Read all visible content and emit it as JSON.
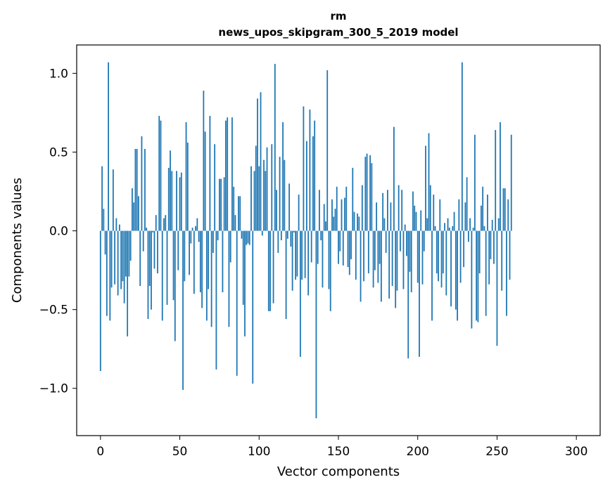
{
  "chart_data": {
    "type": "bar",
    "title": "rm",
    "subtitle": "news_upos_skipgram_300_5_2019 model",
    "xlabel": "Vector components",
    "ylabel": "Components values",
    "xlim": [
      -15,
      315
    ],
    "ylim": [
      -1.3,
      1.18
    ],
    "xticks": [
      0,
      50,
      100,
      150,
      200,
      250,
      300
    ],
    "yticks": [
      -1.0,
      -0.5,
      0.0,
      0.5,
      1.0
    ],
    "xtick_labels": [
      "0",
      "50",
      "100",
      "150",
      "200",
      "250",
      "300"
    ],
    "ytick_labels": [
      "−1.0",
      "−0.5",
      "0.0",
      "0.5",
      "1.0"
    ],
    "bar_color": "#1f77b4",
    "grid": false,
    "legend": "none",
    "values": [
      -0.89,
      0.41,
      0.14,
      -0.15,
      -0.54,
      1.07,
      -0.57,
      -0.36,
      0.39,
      -0.34,
      0.08,
      -0.41,
      0.04,
      -0.37,
      -0.32,
      -0.46,
      -0.29,
      -0.67,
      -0.29,
      -0.19,
      0.27,
      0.18,
      0.52,
      0.52,
      0.22,
      -0.35,
      0.6,
      -0.13,
      0.52,
      0.02,
      -0.56,
      -0.35,
      -0.5,
      -0.01,
      -0.24,
      0.1,
      -0.27,
      0.73,
      0.7,
      -0.57,
      0.08,
      0.1,
      -0.47,
      0.4,
      0.51,
      0.38,
      -0.44,
      -0.7,
      0.38,
      -0.25,
      0.34,
      0.37,
      -1.01,
      -0.32,
      0.69,
      0.56,
      -0.28,
      -0.08,
      0.02,
      -0.4,
      0.03,
      0.08,
      -0.07,
      -0.39,
      -0.49,
      0.89,
      0.63,
      -0.57,
      -0.37,
      0.73,
      -0.61,
      -0.14,
      0.55,
      -0.88,
      -0.06,
      0.33,
      0.33,
      -0.39,
      0.34,
      0.7,
      0.72,
      -0.61,
      -0.2,
      0.72,
      0.28,
      0.1,
      -0.92,
      0.22,
      0.22,
      -0.05,
      -0.47,
      -0.67,
      -0.09,
      -0.08,
      -0.09,
      0.41,
      -0.97,
      0.38,
      0.54,
      0.84,
      0.41,
      0.88,
      -0.03,
      0.45,
      0.38,
      0.53,
      -0.51,
      -0.51,
      0.55,
      -0.46,
      1.06,
      0.26,
      -0.14,
      0.47,
      -0.06,
      0.69,
      0.45,
      -0.56,
      -0.05,
      0.3,
      -0.1,
      -0.38,
      -0.01,
      -0.31,
      -0.29,
      0.23,
      -0.8,
      -0.31,
      0.79,
      -0.3,
      0.57,
      -0.41,
      0.77,
      -0.2,
      0.6,
      0.7,
      -1.19,
      -0.21,
      0.26,
      -0.06,
      -0.36,
      0.17,
      0.06,
      1.02,
      -0.37,
      -0.51,
      0.2,
      0.09,
      0.14,
      0.28,
      -0.21,
      -0.13,
      0.2,
      -0.22,
      0.21,
      0.28,
      -0.23,
      -0.28,
      -0.18,
      0.4,
      0.12,
      -0.31,
      0.11,
      0.09,
      -0.45,
      0.29,
      -0.32,
      0.47,
      0.49,
      -0.27,
      0.48,
      0.43,
      -0.36,
      -0.25,
      0.18,
      -0.33,
      -0.21,
      -0.45,
      0.24,
      0.08,
      -0.14,
      0.26,
      -0.43,
      0.18,
      -0.35,
      0.66,
      -0.49,
      -0.38,
      0.29,
      -0.13,
      0.26,
      -0.37,
      0.04,
      -0.16,
      -0.81,
      -0.26,
      -0.39,
      0.25,
      0.16,
      0.12,
      -0.33,
      -0.8,
      0.13,
      -0.34,
      -0.13,
      0.54,
      0.08,
      0.62,
      0.29,
      -0.57,
      0.23,
      0.03,
      -0.27,
      -0.32,
      0.2,
      -0.36,
      -0.27,
      0.05,
      -0.41,
      0.08,
      0.02,
      -0.48,
      0.03,
      0.12,
      -0.5,
      -0.57,
      0.2,
      -0.33,
      1.07,
      -0.23,
      0.18,
      0.34,
      -0.07,
      0.08,
      -0.62,
      0.02,
      0.61,
      -0.57,
      -0.58,
      -0.27,
      0.16,
      0.28,
      0.03,
      -0.54,
      0.23,
      -0.34,
      -0.18,
      0.07,
      -0.21,
      0.64,
      -0.73,
      0.08,
      0.69,
      -0.38,
      0.27,
      0.27,
      -0.54,
      0.2,
      -0.31,
      0.61
    ]
  }
}
